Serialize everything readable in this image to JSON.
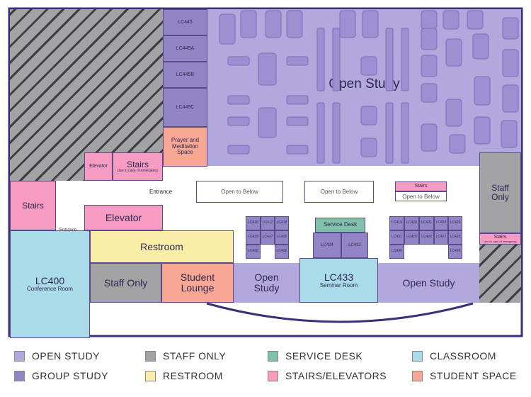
{
  "rooms": {
    "lc445": "LC445",
    "lc445a": "LC445A",
    "lc445b": "LC445B",
    "lc445c": "LC445C",
    "prayer": "Prayer and Meditation Space",
    "open_study_main": "Open Study",
    "elevator_small": "Elevator",
    "stairs_top": "Stairs",
    "stairs_top_note": "Use in case of emergency",
    "stairs_left": "Stairs",
    "elevator_left": "Elevator",
    "entrance_top": "Entrance",
    "entrance_left": "Entrance",
    "open_to_below_1": "Open to Below",
    "open_to_below_2": "Open to Below",
    "open_to_below_3": "Open to Below",
    "stairs_right_small": "Stairs",
    "staff_only_right": "Staff Only",
    "stairs_right": "Stairs",
    "stairs_right_note": "Use in case of emergency",
    "restroom": "Restroom",
    "lc400": "LC400",
    "lc400_sub": "Conference Room",
    "staff_only_bottom": "Staff Only",
    "student_lounge": "Student Lounge",
    "open_study_left": "Open Study",
    "lc433": "LC433",
    "lc433_sub": "Seminar Room",
    "open_study_right": "Open Study",
    "service_desk": "Service Desk",
    "lc434": "LC434",
    "lc432": "LC432",
    "lc416": "LC416",
    "lc417": "LC417",
    "lc418": "LC418",
    "lc439": "LC439",
    "lc437": "LC437",
    "lc435": "LC435",
    "lc438": "LC438",
    "lc436": "LC436",
    "lc419": "LC419",
    "lc420": "LC420",
    "lc421": "LC421",
    "lc422": "LC422",
    "lc423": "LC423",
    "lc431": "LC431",
    "lc429": "LC429",
    "lc428": "LC428",
    "lc427": "LC427",
    "lc425": "LC425",
    "lc430": "LC430",
    "lc426": "LC426"
  },
  "legend": [
    {
      "label": "OPEN STUDY",
      "color": "#b3a8dd"
    },
    {
      "label": "STAFF ONLY",
      "color": "#a3a3a6"
    },
    {
      "label": "SERVICE DESK",
      "color": "#7fbfab"
    },
    {
      "label": "CLASSROOM",
      "color": "#a9dbe9"
    },
    {
      "label": "GROUP STUDY",
      "color": "#9285c6"
    },
    {
      "label": "RESTROOM",
      "color": "#f9eda8"
    },
    {
      "label": "STAIRS/ELEVATORS",
      "color": "#f69bc2"
    },
    {
      "label": "STUDENT SPACE",
      "color": "#f8a794"
    }
  ],
  "colors": {
    "outline": "#3b2f7a",
    "open_study": "#b3a8dd",
    "group_study": "#9285c6",
    "staff_only": "#a3a3a6",
    "service_desk": "#7fbfab",
    "classroom": "#a9dbe9",
    "restroom": "#f9eda8",
    "stairs_elevators": "#f69bc2",
    "student_space": "#f8a794"
  }
}
